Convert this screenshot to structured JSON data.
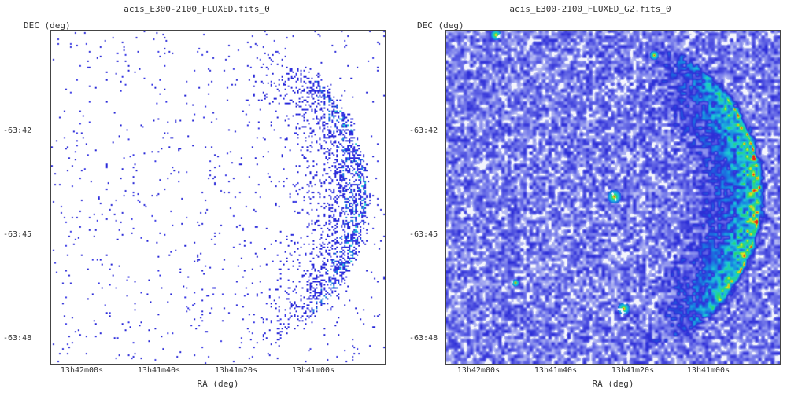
{
  "panels": [
    {
      "id": "left",
      "title": "acis_E300-2100_FLUXED.fits_0",
      "ylabel": "DEC (deg)",
      "xlabel": "RA (deg)",
      "yticks": [
        "-63:42",
        "-63:45",
        "-63:48"
      ],
      "xticks": [
        "13h42m00s",
        "13h41m40s",
        "13h41m20s",
        "13h41m00s"
      ],
      "style": "sparse-counts"
    },
    {
      "id": "right",
      "title": "acis_E300-2100_FLUXED_G2.fits_0",
      "ylabel": "DEC (deg)",
      "xlabel": "RA (deg)",
      "yticks": [
        "-63:42",
        "-63:45",
        "-63:48"
      ],
      "xticks": [
        "13h42m00s",
        "13h41m40s",
        "13h41m20s",
        "13h41m00s"
      ],
      "style": "smoothed"
    }
  ],
  "colormap": {
    "low": "#2b2bd6",
    "mid": "#20c4d8",
    "high": "#f2ea1c",
    "peak": "#e8221e"
  }
}
